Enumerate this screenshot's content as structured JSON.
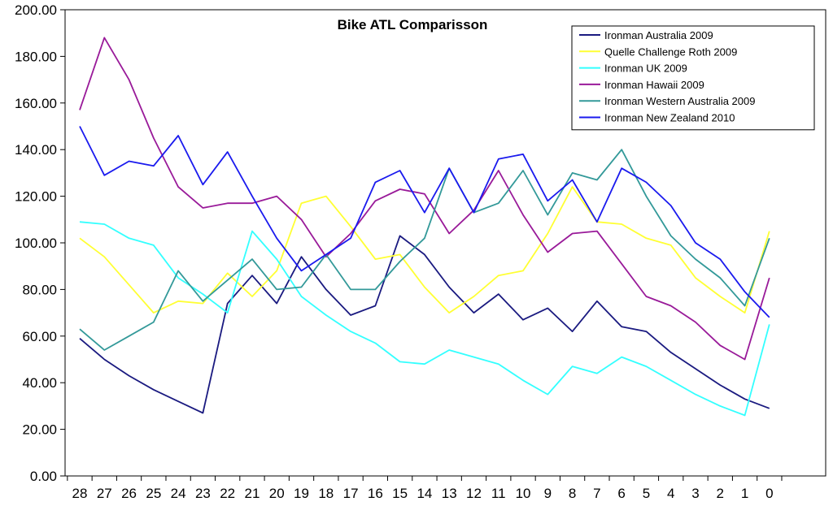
{
  "chart_data": {
    "type": "line",
    "title": "Bike ATL Comparisson",
    "xlabel": "",
    "ylabel": "",
    "ylim": [
      0,
      200
    ],
    "y_ticks": [
      "0.00",
      "20.00",
      "40.00",
      "60.00",
      "80.00",
      "100.00",
      "120.00",
      "140.00",
      "160.00",
      "180.00",
      "200.00"
    ],
    "categories": [
      "28",
      "27",
      "26",
      "25",
      "24",
      "23",
      "22",
      "21",
      "20",
      "19",
      "18",
      "17",
      "16",
      "15",
      "14",
      "13",
      "12",
      "11",
      "10",
      "9",
      "8",
      "7",
      "6",
      "5",
      "4",
      "3",
      "2",
      "1",
      "0"
    ],
    "grid": false,
    "legend_position": "top-right",
    "series": [
      {
        "name": "Ironman Australia 2009",
        "color": "#1a1a80",
        "values": [
          59,
          50,
          43,
          37,
          32,
          27,
          74,
          86,
          74,
          94,
          80,
          69,
          73,
          103,
          95,
          81,
          70,
          78,
          67,
          72,
          62,
          75,
          64,
          62,
          53,
          46,
          39,
          33,
          29
        ]
      },
      {
        "name": "Quelle Challenge Roth 2009",
        "color": "#ffff33",
        "values": [
          102,
          94,
          82,
          70,
          75,
          74,
          87,
          77,
          88,
          117,
          120,
          107,
          93,
          95,
          81,
          70,
          77,
          86,
          88,
          104,
          124,
          109,
          108,
          102,
          99,
          85,
          77,
          70,
          105
        ]
      },
      {
        "name": "Ironman UK 2009",
        "color": "#33ffff",
        "values": [
          109,
          108,
          102,
          99,
          85,
          78,
          70,
          105,
          93,
          77,
          69,
          62,
          57,
          49,
          48,
          54,
          51,
          48,
          41,
          35,
          47,
          44,
          51,
          47,
          41,
          35,
          30,
          26,
          65
        ]
      },
      {
        "name": "Ironman Hawaii 2009",
        "color": "#991a99",
        "values": [
          157,
          188,
          170,
          145,
          124,
          115,
          117,
          117,
          120,
          110,
          94,
          104,
          118,
          123,
          121,
          104,
          114,
          131,
          112,
          96,
          104,
          105,
          91,
          77,
          73,
          66,
          56,
          50,
          85
        ]
      },
      {
        "name": "Ironman Western Australia 2009",
        "color": "#339999",
        "values": [
          63,
          54,
          60,
          66,
          88,
          75,
          84,
          93,
          80,
          81,
          95,
          80,
          80,
          92,
          102,
          132,
          113,
          117,
          131,
          112,
          130,
          127,
          140,
          120,
          103,
          93,
          85,
          73,
          102
        ]
      },
      {
        "name": "Ironman New Zealand 2010",
        "color": "#1a1aee",
        "values": [
          150,
          129,
          135,
          133,
          146,
          125,
          139,
          120,
          102,
          88,
          95,
          102,
          126,
          131,
          113,
          132,
          113,
          136,
          138,
          118,
          127,
          109,
          132,
          126,
          116,
          100,
          93,
          79,
          68
        ]
      }
    ]
  }
}
